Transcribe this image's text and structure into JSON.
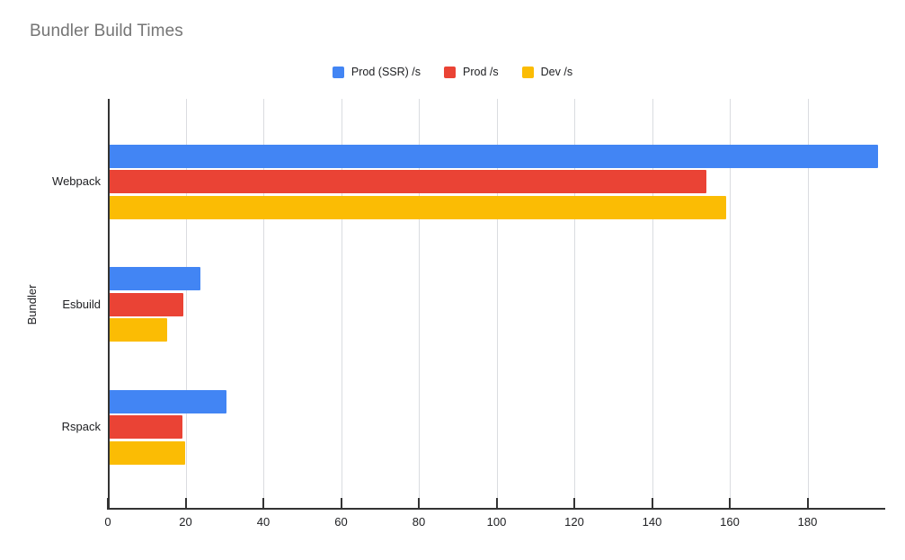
{
  "title": "Bundler Build Times",
  "chart_data": {
    "type": "bar",
    "orientation": "horizontal",
    "title": "Bundler Build Times",
    "xlabel": "",
    "ylabel": "Bundler",
    "categories": [
      "Webpack",
      "Esbuild",
      "Rspack"
    ],
    "series": [
      {
        "name": "Prod (SSR) /s",
        "color": "#4285F4",
        "values": [
          198.1,
          23.9,
          30.5
        ]
      },
      {
        "name": "Prod /s",
        "color": "#EA4335",
        "values": [
          154.0,
          19.5,
          19.2
        ]
      },
      {
        "name": "Dev /s",
        "color": "#FBBC04",
        "values": [
          159.0,
          15.3,
          19.8
        ]
      }
    ],
    "xlim": [
      0,
      200
    ],
    "xticks": [
      0,
      20,
      40,
      60,
      80,
      100,
      120,
      140,
      160,
      180
    ],
    "grid": true,
    "legend_position": "top"
  },
  "colors": {
    "title_text": "#757575",
    "axis_line": "#333333",
    "gridline": "#dadce0",
    "tick_label_text": "#202124",
    "background": "#ffffff"
  }
}
